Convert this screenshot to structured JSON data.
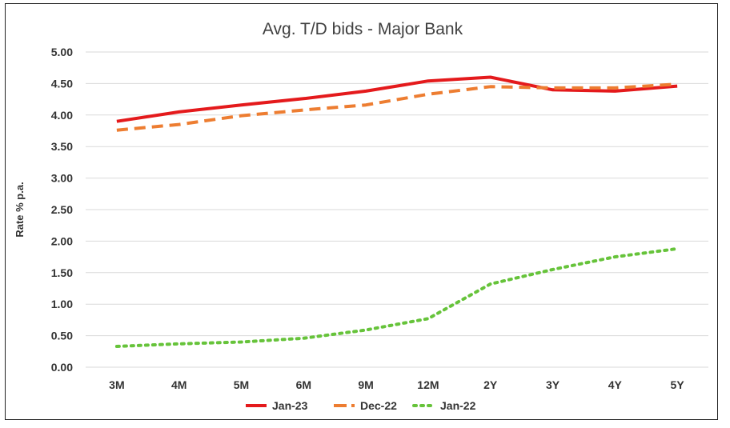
{
  "chart_data": {
    "type": "line",
    "title": "Avg. T/D bids - Major Bank",
    "xlabel": "",
    "ylabel": "Rate % p.a.",
    "ylim": [
      0,
      5
    ],
    "y_ticks": [
      "0.00",
      "0.50",
      "1.00",
      "1.50",
      "2.00",
      "2.50",
      "3.00",
      "3.50",
      "4.00",
      "4.50",
      "5.00"
    ],
    "grid": true,
    "legend_position": "bottom",
    "categories": [
      "3M",
      "4M",
      "5M",
      "6M",
      "9M",
      "12M",
      "2Y",
      "3Y",
      "4Y",
      "5Y"
    ],
    "series": [
      {
        "name": "Jan-23",
        "values": [
          3.9,
          4.05,
          4.16,
          4.26,
          4.38,
          4.54,
          4.6,
          4.4,
          4.38,
          4.46
        ],
        "color": "#e41a1c",
        "style": "solid"
      },
      {
        "name": "Dec-22",
        "values": [
          3.76,
          3.85,
          3.99,
          4.08,
          4.16,
          4.33,
          4.45,
          4.43,
          4.43,
          4.49
        ],
        "color": "#ed7d31",
        "style": "dashed"
      },
      {
        "name": "Jan-22",
        "values": [
          0.33,
          0.37,
          0.4,
          0.46,
          0.59,
          0.77,
          1.32,
          1.55,
          1.75,
          1.88
        ],
        "color": "#66c33a",
        "style": "dotted"
      }
    ]
  }
}
